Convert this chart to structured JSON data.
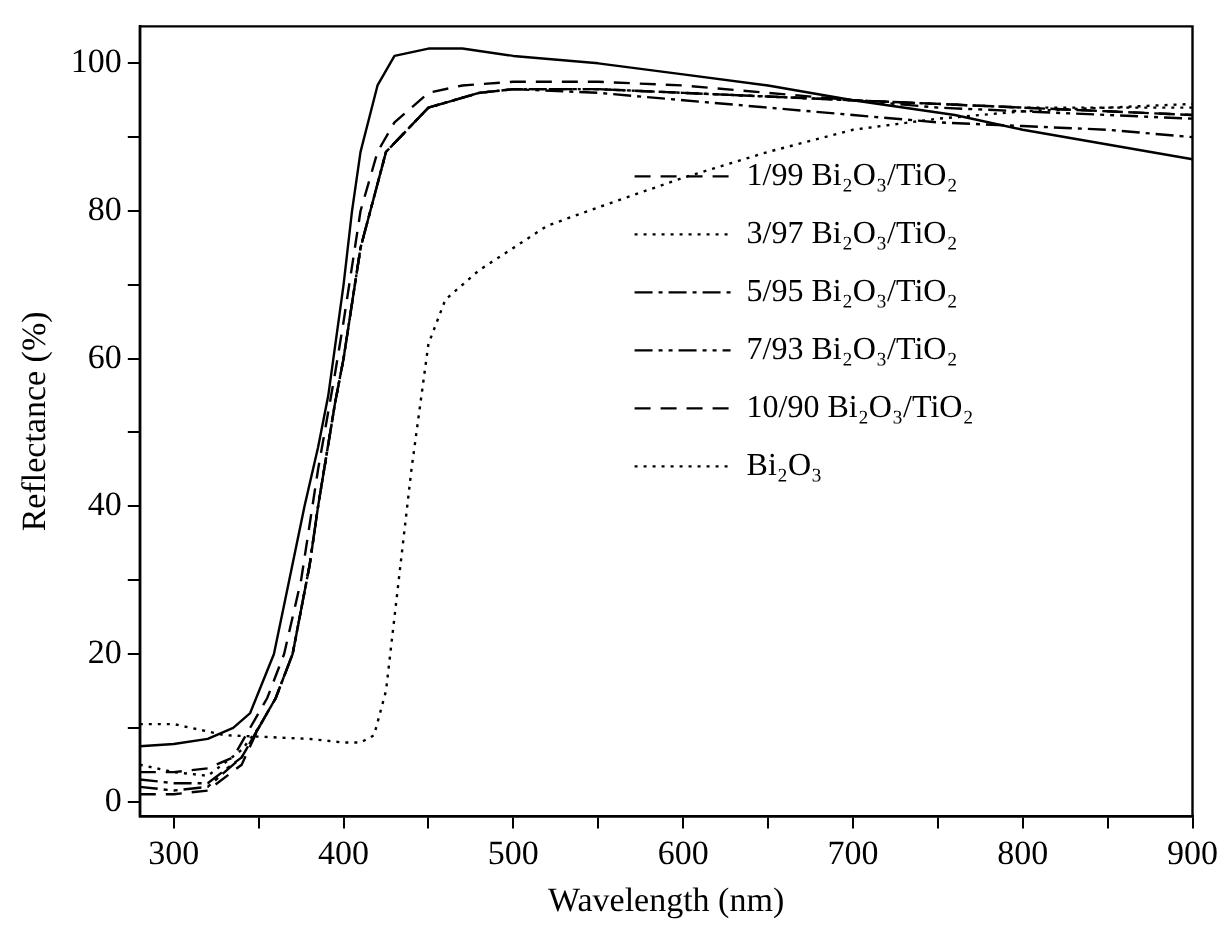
{
  "chart_data": {
    "type": "line",
    "xlabel": "Wavelength (nm)",
    "ylabel": "Reflectance (%)",
    "xlim": [
      280,
      900
    ],
    "ylim": [
      -2,
      105
    ],
    "xticks": [
      300,
      {
        "value": 350,
        "label": null
      },
      400,
      {
        "value": 450,
        "label": null
      },
      500,
      {
        "value": 550,
        "label": null
      },
      600,
      {
        "value": 650,
        "label": null
      },
      700,
      {
        "value": 750,
        "label": null
      },
      800,
      {
        "value": 850,
        "label": null
      },
      900
    ],
    "yticks": [
      0,
      {
        "value": 10,
        "label": null
      },
      20,
      {
        "value": 30,
        "label": null
      },
      40,
      {
        "value": 50,
        "label": null
      },
      60,
      {
        "value": 70,
        "label": null
      },
      80,
      {
        "value": 90,
        "label": null
      },
      100
    ],
    "grid": false,
    "legend": "right",
    "marker": "none",
    "series": [
      {
        "color": "#000000",
        "line_style": "solid",
        "x": [
          280,
          300,
          320,
          335,
          345,
          359,
          368,
          377,
          385,
          391,
          400,
          405,
          410,
          420,
          430,
          450,
          470,
          500,
          550,
          600,
          650,
          700,
          760,
          800,
          850,
          900
        ],
        "values": [
          7.5,
          7.8,
          8.5,
          10,
          12,
          20,
          30,
          40,
          48,
          55,
          70,
          80,
          88,
          97,
          101,
          102,
          102,
          101,
          100,
          98.5,
          97,
          95,
          93,
          91,
          89,
          87
        ]
      },
      {
        "name": "1/99 Bi₂O₃/TiO₂",
        "color": "#000000",
        "line_style": "dashed",
        "x": [
          280,
          300,
          320,
          335,
          345,
          355,
          365,
          375,
          385,
          395,
          400,
          410,
          420,
          430,
          450,
          470,
          500,
          550,
          600,
          650,
          700,
          750,
          800,
          850,
          900
        ],
        "values": [
          4,
          4,
          4.5,
          6,
          10,
          14,
          20,
          30,
          45,
          58,
          65,
          80,
          88,
          92,
          96,
          97,
          97.5,
          97.5,
          97,
          96,
          95,
          94.5,
          94,
          93.5,
          93
        ]
      },
      {
        "name": "3/97 Bi₂O₃/TiO₂",
        "color": "#000000",
        "line_style": "dotted",
        "x": [
          280,
          300,
          320,
          340,
          350,
          360,
          370,
          380,
          385,
          395,
          400,
          410,
          425,
          450,
          480,
          500,
          550,
          600,
          650,
          700,
          750,
          800,
          850,
          900
        ],
        "values": [
          5,
          4,
          3.5,
          7,
          10,
          14,
          20,
          32,
          40,
          54,
          60,
          75,
          88,
          94,
          96,
          96.5,
          96.5,
          96,
          95.5,
          95,
          94.5,
          94,
          94,
          94
        ]
      },
      {
        "name": "5/95 Bi₂O₃/TiO₂",
        "color": "#000000",
        "line_style": "dashdot",
        "x": [
          280,
          300,
          320,
          340,
          350,
          360,
          370,
          380,
          385,
          395,
          400,
          410,
          425,
          450,
          480,
          500,
          550,
          600,
          650,
          700,
          750,
          800,
          850,
          900
        ],
        "values": [
          3,
          2.5,
          2.5,
          6,
          10,
          14,
          20,
          32,
          40,
          54,
          60,
          75,
          88,
          94,
          96,
          96.5,
          96,
          95,
          94,
          93,
          92,
          91.5,
          91,
          90
        ]
      },
      {
        "name": "7/93 Bi₂O₃/TiO₂",
        "color": "#000000",
        "line_style": "dashdotdot",
        "x": [
          280,
          300,
          320,
          340,
          350,
          360,
          370,
          380,
          385,
          395,
          400,
          410,
          425,
          450,
          480,
          500,
          550,
          600,
          650,
          700,
          750,
          800,
          850,
          900
        ],
        "values": [
          2,
          1.5,
          2,
          6,
          10,
          14,
          20,
          32,
          40,
          54,
          60,
          75,
          88,
          94,
          96,
          96.5,
          96.5,
          96,
          95.5,
          95,
          94,
          93.5,
          93,
          92.5
        ]
      },
      {
        "name": "10/90 Bi₂O₃/TiO₂",
        "color": "#000000",
        "line_style": "dashed",
        "x": [
          280,
          300,
          320,
          340,
          350,
          360,
          370,
          380,
          385,
          395,
          400,
          410,
          425,
          450,
          480,
          500,
          550,
          600,
          650,
          700,
          750,
          800,
          850,
          900
        ],
        "values": [
          1,
          1,
          1.5,
          5,
          10,
          14,
          20,
          32,
          40,
          54,
          60,
          75,
          88,
          94,
          96,
          96.5,
          96.5,
          96,
          95.5,
          95,
          94.5,
          94,
          93.5,
          93
        ]
      },
      {
        "name": "Bi₂O₃",
        "color": "#000000",
        "line_style": "dotted",
        "x": [
          280,
          300,
          330,
          350,
          380,
          400,
          410,
          418,
          425,
          430,
          440,
          450,
          460,
          480,
          500,
          520,
          550,
          600,
          650,
          700,
          750,
          800,
          850,
          900
        ],
        "values": [
          10.5,
          10.5,
          9,
          8.8,
          8.5,
          8,
          8,
          9,
          15,
          25,
          45,
          62,
          68,
          72,
          75,
          78,
          80.5,
          84.5,
          88,
          91,
          92.5,
          93.5,
          94,
          94.5
        ]
      }
    ]
  }
}
